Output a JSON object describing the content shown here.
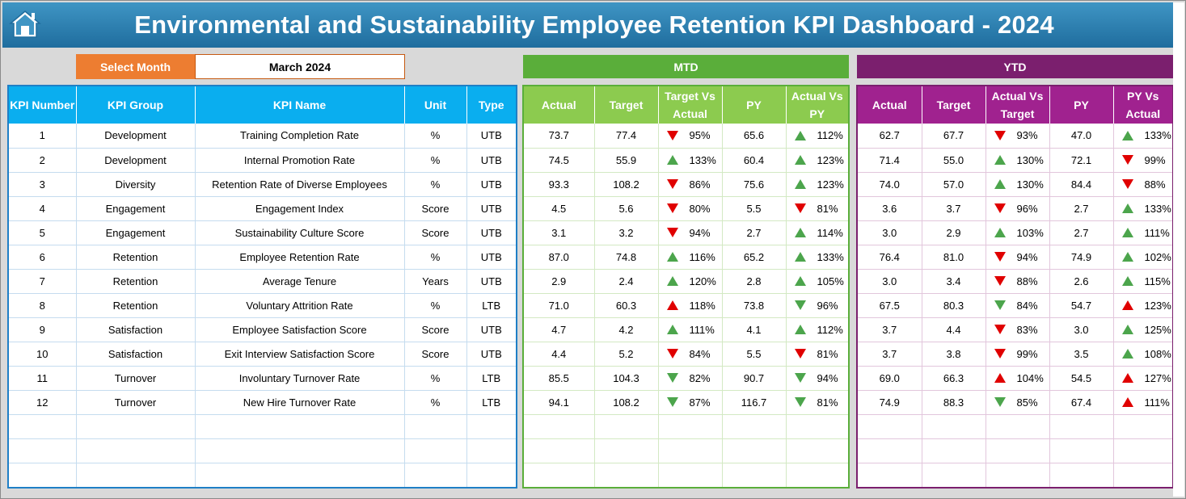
{
  "title": "Environmental and Sustainability Employee Retention KPI Dashboard - 2024",
  "selector": {
    "label": "Select Month",
    "value": "March 2024"
  },
  "sections": {
    "mtd": "MTD",
    "ytd": "YTD"
  },
  "colors": {
    "title": "#2a7fb0",
    "select_label": "#ed7d31",
    "kpi": "#0aaeef",
    "mtd": "#8ccb4f",
    "mtd_dark": "#5aae3a",
    "ytd": "#a0228f",
    "ytd_dark": "#7b1f6e",
    "good": "#4ca54c",
    "bad": "#e00000"
  },
  "kpi_headers": [
    "KPI Number",
    "KPI Group",
    "KPI Name",
    "Unit",
    "Type"
  ],
  "mtd_headers": [
    "Actual",
    "Target",
    "Target Vs Actual",
    "PY",
    "Actual Vs PY"
  ],
  "ytd_headers": [
    "Actual",
    "Target",
    "Actual Vs Target",
    "PY",
    "PY Vs Actual"
  ],
  "kpis": [
    {
      "num": "1",
      "group": "Development",
      "name": "Training Completion Rate",
      "unit": "%",
      "type": "UTB",
      "mtd": {
        "actual": "73.7",
        "target": "77.4",
        "tva": "95%",
        "tva_icon": "down-red",
        "py": "65.6",
        "avp": "112%",
        "avp_icon": "up-green"
      },
      "ytd": {
        "actual": "62.7",
        "target": "67.7",
        "avt": "93%",
        "avt_icon": "down-red",
        "py": "47.0",
        "pva": "133%",
        "pva_icon": "up-green"
      }
    },
    {
      "num": "2",
      "group": "Development",
      "name": "Internal Promotion Rate",
      "unit": "%",
      "type": "UTB",
      "mtd": {
        "actual": "74.5",
        "target": "55.9",
        "tva": "133%",
        "tva_icon": "up-green",
        "py": "60.4",
        "avp": "123%",
        "avp_icon": "up-green"
      },
      "ytd": {
        "actual": "71.4",
        "target": "55.0",
        "avt": "130%",
        "avt_icon": "up-green",
        "py": "72.1",
        "pva": "99%",
        "pva_icon": "down-red"
      }
    },
    {
      "num": "3",
      "group": "Diversity",
      "name": "Retention Rate of Diverse Employees",
      "unit": "%",
      "type": "UTB",
      "mtd": {
        "actual": "93.3",
        "target": "108.2",
        "tva": "86%",
        "tva_icon": "down-red",
        "py": "75.6",
        "avp": "123%",
        "avp_icon": "up-green"
      },
      "ytd": {
        "actual": "74.0",
        "target": "57.0",
        "avt": "130%",
        "avt_icon": "up-green",
        "py": "84.4",
        "pva": "88%",
        "pva_icon": "down-red"
      }
    },
    {
      "num": "4",
      "group": "Engagement",
      "name": "Engagement Index",
      "unit": "Score",
      "type": "UTB",
      "mtd": {
        "actual": "4.5",
        "target": "5.6",
        "tva": "80%",
        "tva_icon": "down-red",
        "py": "5.5",
        "avp": "81%",
        "avp_icon": "down-red"
      },
      "ytd": {
        "actual": "3.6",
        "target": "3.7",
        "avt": "96%",
        "avt_icon": "down-red",
        "py": "2.7",
        "pva": "133%",
        "pva_icon": "up-green"
      }
    },
    {
      "num": "5",
      "group": "Engagement",
      "name": "Sustainability Culture Score",
      "unit": "Score",
      "type": "UTB",
      "mtd": {
        "actual": "3.1",
        "target": "3.2",
        "tva": "94%",
        "tva_icon": "down-red",
        "py": "2.7",
        "avp": "114%",
        "avp_icon": "up-green"
      },
      "ytd": {
        "actual": "3.0",
        "target": "2.9",
        "avt": "103%",
        "avt_icon": "up-green",
        "py": "2.7",
        "pva": "111%",
        "pva_icon": "up-green"
      }
    },
    {
      "num": "6",
      "group": "Retention",
      "name": "Employee Retention Rate",
      "unit": "%",
      "type": "UTB",
      "mtd": {
        "actual": "87.0",
        "target": "74.8",
        "tva": "116%",
        "tva_icon": "up-green",
        "py": "65.2",
        "avp": "133%",
        "avp_icon": "up-green"
      },
      "ytd": {
        "actual": "76.4",
        "target": "81.0",
        "avt": "94%",
        "avt_icon": "down-red",
        "py": "74.9",
        "pva": "102%",
        "pva_icon": "up-green"
      }
    },
    {
      "num": "7",
      "group": "Retention",
      "name": "Average Tenure",
      "unit": "Years",
      "type": "UTB",
      "mtd": {
        "actual": "2.9",
        "target": "2.4",
        "tva": "120%",
        "tva_icon": "up-green",
        "py": "2.8",
        "avp": "105%",
        "avp_icon": "up-green"
      },
      "ytd": {
        "actual": "3.0",
        "target": "3.4",
        "avt": "88%",
        "avt_icon": "down-red",
        "py": "2.6",
        "pva": "115%",
        "pva_icon": "up-green"
      }
    },
    {
      "num": "8",
      "group": "Retention",
      "name": "Voluntary Attrition Rate",
      "unit": "%",
      "type": "LTB",
      "mtd": {
        "actual": "71.0",
        "target": "60.3",
        "tva": "118%",
        "tva_icon": "up-red",
        "py": "73.8",
        "avp": "96%",
        "avp_icon": "down-green"
      },
      "ytd": {
        "actual": "67.5",
        "target": "80.3",
        "avt": "84%",
        "avt_icon": "down-green",
        "py": "54.7",
        "pva": "123%",
        "pva_icon": "up-red"
      }
    },
    {
      "num": "9",
      "group": "Satisfaction",
      "name": "Employee Satisfaction Score",
      "unit": "Score",
      "type": "UTB",
      "mtd": {
        "actual": "4.7",
        "target": "4.2",
        "tva": "111%",
        "tva_icon": "up-green",
        "py": "4.1",
        "avp": "112%",
        "avp_icon": "up-green"
      },
      "ytd": {
        "actual": "3.7",
        "target": "4.4",
        "avt": "83%",
        "avt_icon": "down-red",
        "py": "3.0",
        "pva": "125%",
        "pva_icon": "up-green"
      }
    },
    {
      "num": "10",
      "group": "Satisfaction",
      "name": "Exit Interview Satisfaction Score",
      "unit": "Score",
      "type": "UTB",
      "mtd": {
        "actual": "4.4",
        "target": "5.2",
        "tva": "84%",
        "tva_icon": "down-red",
        "py": "5.5",
        "avp": "81%",
        "avp_icon": "down-red"
      },
      "ytd": {
        "actual": "3.7",
        "target": "3.8",
        "avt": "99%",
        "avt_icon": "down-red",
        "py": "3.5",
        "pva": "108%",
        "pva_icon": "up-green"
      }
    },
    {
      "num": "11",
      "group": "Turnover",
      "name": "Involuntary Turnover Rate",
      "unit": "%",
      "type": "LTB",
      "mtd": {
        "actual": "85.5",
        "target": "104.3",
        "tva": "82%",
        "tva_icon": "down-green",
        "py": "90.7",
        "avp": "94%",
        "avp_icon": "down-green"
      },
      "ytd": {
        "actual": "69.0",
        "target": "66.3",
        "avt": "104%",
        "avt_icon": "up-red",
        "py": "54.5",
        "pva": "127%",
        "pva_icon": "up-red"
      }
    },
    {
      "num": "12",
      "group": "Turnover",
      "name": "New Hire Turnover Rate",
      "unit": "%",
      "type": "LTB",
      "mtd": {
        "actual": "94.1",
        "target": "108.2",
        "tva": "87%",
        "tva_icon": "down-green",
        "py": "116.7",
        "avp": "81%",
        "avp_icon": "down-green"
      },
      "ytd": {
        "actual": "74.9",
        "target": "88.3",
        "avt": "85%",
        "avt_icon": "down-green",
        "py": "67.4",
        "pva": "111%",
        "pva_icon": "up-red"
      }
    }
  ]
}
